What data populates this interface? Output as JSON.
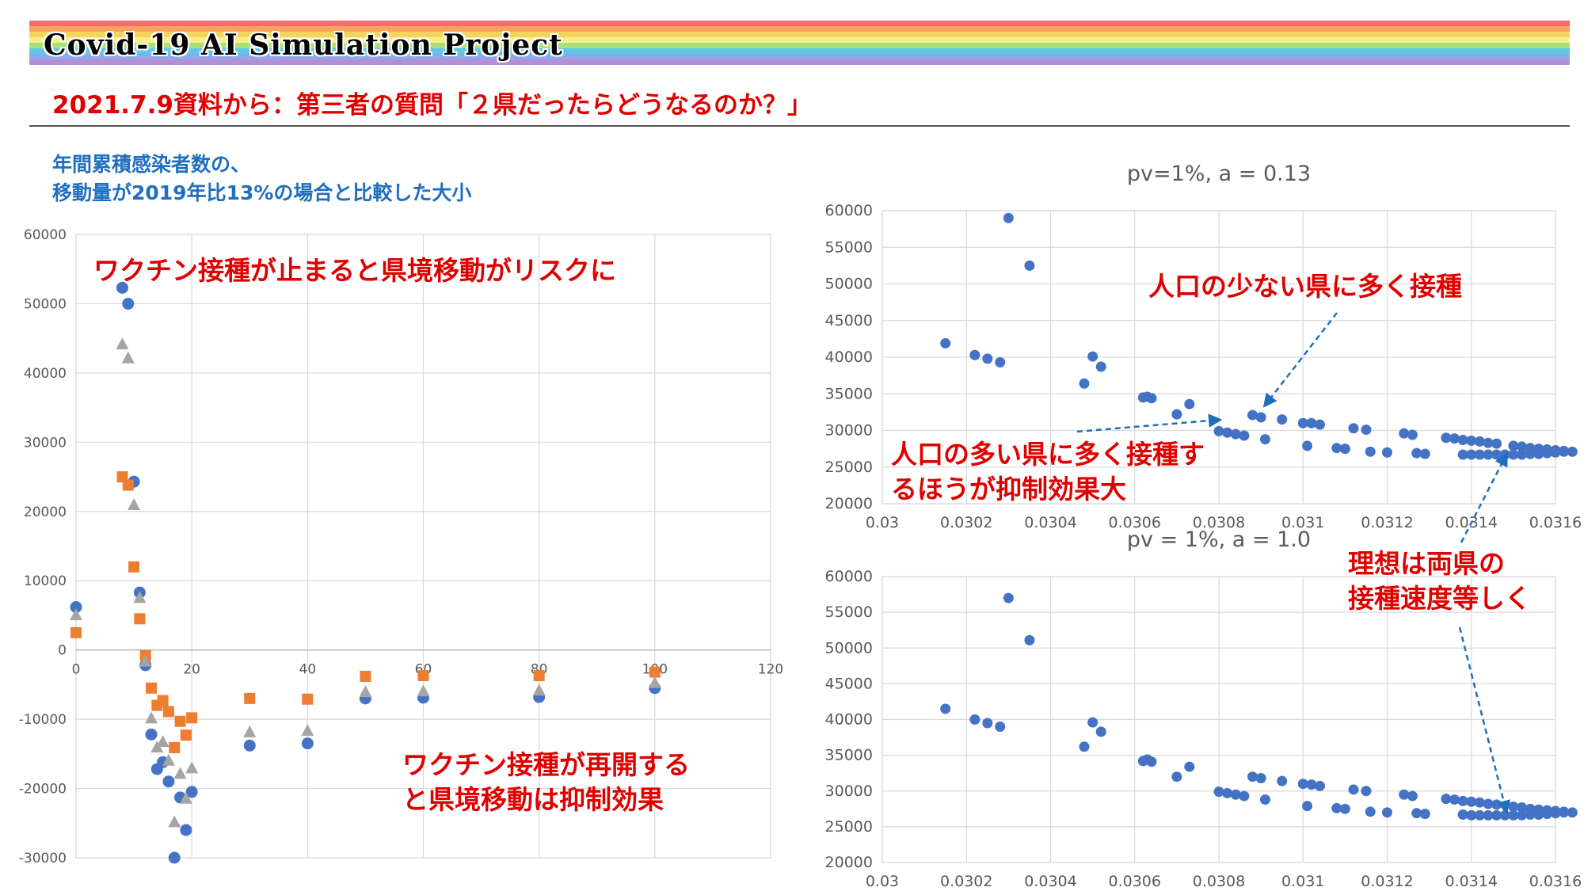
{
  "header": {
    "project_title": "Covid-19 AI Simulation Project",
    "subtitle": "2021.7.9資料から：第三者の質問「２県だったらどうなるのか？」",
    "stripe_colors": [
      "#f26d6d",
      "#f7a35c",
      "#f4d35e",
      "#f9ef8a",
      "#a8e07a",
      "#5ec8e8",
      "#8fa8ea",
      "#b58fd6"
    ]
  },
  "left_chart_heading": {
    "line1": "年間累積感染者数の、",
    "line2": "移動量が2019年比13%の場合と比較した大小"
  },
  "annotations": {
    "stop_risk": "ワクチン接種が止まると県境移動がリスクに",
    "resume_line1": "ワクチン接種が再開する",
    "resume_line2": "と県境移動は抑制効果",
    "small_pref": "人口の少ない県に多く接種",
    "large_pref_line1": "人口の多い県に多く接種す",
    "large_pref_line2": "るほうが抑制効果大",
    "ideal_line1": "理想は両県の",
    "ideal_line2": "接種速度等しく"
  },
  "chart_data": [
    {
      "type": "scatter",
      "title": "",
      "xlabel": "",
      "ylabel": "",
      "xlim": [
        0,
        120
      ],
      "ylim": [
        -30000,
        60000
      ],
      "x_ticks": [
        0,
        20,
        40,
        60,
        80,
        100,
        120
      ],
      "y_ticks": [
        -30000,
        -20000,
        -10000,
        0,
        10000,
        20000,
        30000,
        40000,
        50000,
        60000
      ],
      "grid": true,
      "series": [
        {
          "color": "#4472c4",
          "marker": "circle",
          "points": [
            [
              0,
              6200
            ],
            [
              8,
              52300
            ],
            [
              9,
              50000
            ],
            [
              10,
              24300
            ],
            [
              11,
              8300
            ],
            [
              12,
              -2200
            ],
            [
              13,
              -12200
            ],
            [
              14,
              -17200
            ],
            [
              15,
              -16200
            ],
            [
              16,
              -19000
            ],
            [
              17,
              -30000
            ],
            [
              18,
              -21300
            ],
            [
              19,
              -26000
            ],
            [
              20,
              -20500
            ],
            [
              30,
              -13800
            ],
            [
              40,
              -13500
            ],
            [
              50,
              -7000
            ],
            [
              60,
              -6900
            ],
            [
              80,
              -6800
            ],
            [
              100,
              -5500
            ]
          ]
        },
        {
          "color": "#ed7d31",
          "marker": "square",
          "points": [
            [
              0,
              2500
            ],
            [
              8,
              25000
            ],
            [
              9,
              23800
            ],
            [
              10,
              12000
            ],
            [
              11,
              4500
            ],
            [
              12,
              -800
            ],
            [
              13,
              -5500
            ],
            [
              14,
              -8000
            ],
            [
              15,
              -7300
            ],
            [
              16,
              -8900
            ],
            [
              17,
              -14100
            ],
            [
              18,
              -10300
            ],
            [
              19,
              -12300
            ],
            [
              20,
              -9800
            ],
            [
              30,
              -7000
            ],
            [
              40,
              -7100
            ],
            [
              50,
              -3800
            ],
            [
              60,
              -3700
            ],
            [
              80,
              -3700
            ],
            [
              100,
              -3200
            ]
          ]
        },
        {
          "color": "#a5a5a5",
          "marker": "triangle",
          "points": [
            [
              0,
              5100
            ],
            [
              8,
              44200
            ],
            [
              9,
              42200
            ],
            [
              10,
              21000
            ],
            [
              11,
              7600
            ],
            [
              12,
              -1600
            ],
            [
              13,
              -9800
            ],
            [
              14,
              -14000
            ],
            [
              15,
              -13200
            ],
            [
              16,
              -15900
            ],
            [
              17,
              -24800
            ],
            [
              18,
              -17800
            ],
            [
              19,
              -21400
            ],
            [
              20,
              -17000
            ],
            [
              30,
              -11800
            ],
            [
              40,
              -11600
            ],
            [
              50,
              -6000
            ],
            [
              60,
              -5900
            ],
            [
              80,
              -5800
            ],
            [
              100,
              -4700
            ]
          ]
        }
      ]
    },
    {
      "type": "scatter",
      "title": "pv=1%, a = 0.13",
      "xlabel": "",
      "ylabel": "",
      "xlim": [
        0.03,
        0.0316
      ],
      "ylim": [
        20000,
        60000
      ],
      "x_ticks": [
        "0.03",
        "0.0302",
        "0.0304",
        "0.0306",
        "0.0308",
        "0.031",
        "0.0312",
        "0.0314",
        "0.0316"
      ],
      "y_ticks": [
        20000,
        25000,
        30000,
        35000,
        40000,
        45000,
        50000,
        55000,
        60000
      ],
      "grid": true,
      "series": [
        {
          "color": "#4472c4",
          "marker": "circle",
          "points": [
            [
              0.03015,
              41900
            ],
            [
              0.03022,
              40300
            ],
            [
              0.03025,
              39800
            ],
            [
              0.03028,
              39300
            ],
            [
              0.0303,
              59000
            ],
            [
              0.03035,
              52500
            ],
            [
              0.03048,
              36400
            ],
            [
              0.0305,
              40100
            ],
            [
              0.03052,
              38700
            ],
            [
              0.03062,
              34500
            ],
            [
              0.03063,
              34600
            ],
            [
              0.03064,
              34400
            ],
            [
              0.0307,
              32200
            ],
            [
              0.03073,
              33600
            ],
            [
              0.0308,
              29900
            ],
            [
              0.03082,
              29700
            ],
            [
              0.03084,
              29500
            ],
            [
              0.03086,
              29300
            ],
            [
              0.03088,
              32100
            ],
            [
              0.0309,
              31800
            ],
            [
              0.03091,
              28800
            ],
            [
              0.03095,
              31500
            ],
            [
              0.031,
              31000
            ],
            [
              0.03101,
              27900
            ],
            [
              0.03102,
              31000
            ],
            [
              0.03104,
              30800
            ],
            [
              0.03108,
              27600
            ],
            [
              0.0311,
              27500
            ],
            [
              0.03112,
              30300
            ],
            [
              0.03115,
              30100
            ],
            [
              0.03116,
              27100
            ],
            [
              0.0312,
              27000
            ],
            [
              0.03124,
              29600
            ],
            [
              0.03126,
              29400
            ],
            [
              0.03127,
              26900
            ],
            [
              0.03129,
              26800
            ],
            [
              0.03134,
              29000
            ],
            [
              0.03136,
              28900
            ],
            [
              0.03138,
              28700
            ],
            [
              0.03138,
              26700
            ],
            [
              0.0314,
              28600
            ],
            [
              0.0314,
              26700
            ],
            [
              0.03142,
              28500
            ],
            [
              0.03142,
              26700
            ],
            [
              0.03144,
              28300
            ],
            [
              0.03144,
              26700
            ],
            [
              0.03146,
              28200
            ],
            [
              0.03146,
              26700
            ],
            [
              0.03148,
              26700
            ],
            [
              0.0315,
              27900
            ],
            [
              0.0315,
              26700
            ],
            [
              0.03152,
              27800
            ],
            [
              0.03152,
              26700
            ],
            [
              0.03154,
              27600
            ],
            [
              0.03154,
              26800
            ],
            [
              0.03156,
              27500
            ],
            [
              0.03156,
              26800
            ],
            [
              0.03158,
              27400
            ],
            [
              0.03158,
              26900
            ],
            [
              0.0316,
              27300
            ],
            [
              0.0316,
              27000
            ],
            [
              0.03162,
              27200
            ],
            [
              0.03162,
              27100
            ],
            [
              0.03164,
              27100
            ]
          ]
        }
      ]
    },
    {
      "type": "scatter",
      "title": "pv = 1%, a = 1.0",
      "xlabel": "",
      "ylabel": "",
      "xlim": [
        0.03,
        0.0316
      ],
      "ylim": [
        20000,
        60000
      ],
      "x_ticks": [
        "0.03",
        "0.0302",
        "0.0304",
        "0.0306",
        "0.0308",
        "0.031",
        "0.0312",
        "0.0314",
        "0.0316"
      ],
      "y_ticks": [
        20000,
        25000,
        30000,
        35000,
        40000,
        45000,
        50000,
        55000,
        60000
      ],
      "grid": true,
      "series": [
        {
          "color": "#4472c4",
          "marker": "circle",
          "points": [
            [
              0.03015,
              41500
            ],
            [
              0.03022,
              40000
            ],
            [
              0.03025,
              39500
            ],
            [
              0.03028,
              39000
            ],
            [
              0.0303,
              57000
            ],
            [
              0.03035,
              51100
            ],
            [
              0.03048,
              36200
            ],
            [
              0.0305,
              39600
            ],
            [
              0.03052,
              38300
            ],
            [
              0.03062,
              34200
            ],
            [
              0.03063,
              34400
            ],
            [
              0.03064,
              34100
            ],
            [
              0.0307,
              32000
            ],
            [
              0.03073,
              33400
            ],
            [
              0.0308,
              29900
            ],
            [
              0.03082,
              29700
            ],
            [
              0.03084,
              29500
            ],
            [
              0.03086,
              29300
            ],
            [
              0.03088,
              32000
            ],
            [
              0.0309,
              31800
            ],
            [
              0.03091,
              28800
            ],
            [
              0.03095,
              31400
            ],
            [
              0.031,
              31000
            ],
            [
              0.03101,
              27900
            ],
            [
              0.03102,
              30900
            ],
            [
              0.03104,
              30700
            ],
            [
              0.03108,
              27600
            ],
            [
              0.0311,
              27500
            ],
            [
              0.03112,
              30200
            ],
            [
              0.03115,
              30000
            ],
            [
              0.03116,
              27100
            ],
            [
              0.0312,
              27000
            ],
            [
              0.03124,
              29500
            ],
            [
              0.03126,
              29300
            ],
            [
              0.03127,
              26900
            ],
            [
              0.03129,
              26800
            ],
            [
              0.03134,
              28900
            ],
            [
              0.03136,
              28800
            ],
            [
              0.03138,
              28600
            ],
            [
              0.03138,
              26700
            ],
            [
              0.0314,
              28500
            ],
            [
              0.0314,
              26600
            ],
            [
              0.03142,
              28400
            ],
            [
              0.03142,
              26600
            ],
            [
              0.03144,
              28200
            ],
            [
              0.03144,
              26600
            ],
            [
              0.03146,
              28100
            ],
            [
              0.03146,
              26600
            ],
            [
              0.03148,
              26600
            ],
            [
              0.0315,
              27800
            ],
            [
              0.0315,
              26600
            ],
            [
              0.03152,
              27700
            ],
            [
              0.03152,
              26600
            ],
            [
              0.03154,
              27500
            ],
            [
              0.03154,
              26700
            ],
            [
              0.03156,
              27400
            ],
            [
              0.03156,
              26700
            ],
            [
              0.03158,
              27300
            ],
            [
              0.03158,
              26800
            ],
            [
              0.0316,
              27200
            ],
            [
              0.0316,
              26900
            ],
            [
              0.03162,
              27100
            ],
            [
              0.03162,
              27000
            ],
            [
              0.03164,
              27000
            ]
          ]
        }
      ]
    }
  ]
}
